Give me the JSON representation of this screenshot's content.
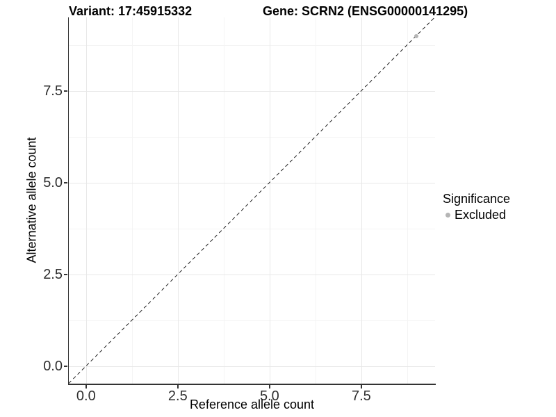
{
  "chart_data": {
    "type": "scatter",
    "title_left": "Variant: 17:45915332",
    "title_right": "Gene: SCRN2 (ENSG00000141295)",
    "xlabel": "Reference allele count",
    "ylabel": "Alternative allele count",
    "xlim": [
      -0.47,
      9.51
    ],
    "ylim": [
      -0.47,
      9.51
    ],
    "x_ticks": [
      0,
      2.5,
      5,
      7.5
    ],
    "y_ticks": [
      0,
      2.5,
      5,
      7.5
    ],
    "x_minor_ticks": [
      1.25,
      3.75,
      6.25,
      8.75
    ],
    "y_minor_ticks": [
      1.25,
      3.75,
      6.25,
      8.75
    ],
    "tick_decimals": 1,
    "grid": "major+minor",
    "points": [
      {
        "x": 9,
        "y": 9,
        "series": "Excluded"
      }
    ],
    "reference_line": {
      "kind": "identity",
      "style": "dashed",
      "color": "#1a1a1a",
      "from": [
        -0.47,
        -0.47
      ],
      "to": [
        9.51,
        9.51
      ]
    },
    "legend": {
      "title": "Significance",
      "position": "right",
      "entries": [
        {
          "label": "Excluded",
          "color": "#b5b5b5"
        }
      ]
    },
    "colors": {
      "background": "#ffffff",
      "axis_line": "#333333",
      "tick_text": "#2e2e2e",
      "grid_major": "#e8e8e8",
      "grid_minor": "#f4f4f4"
    }
  }
}
